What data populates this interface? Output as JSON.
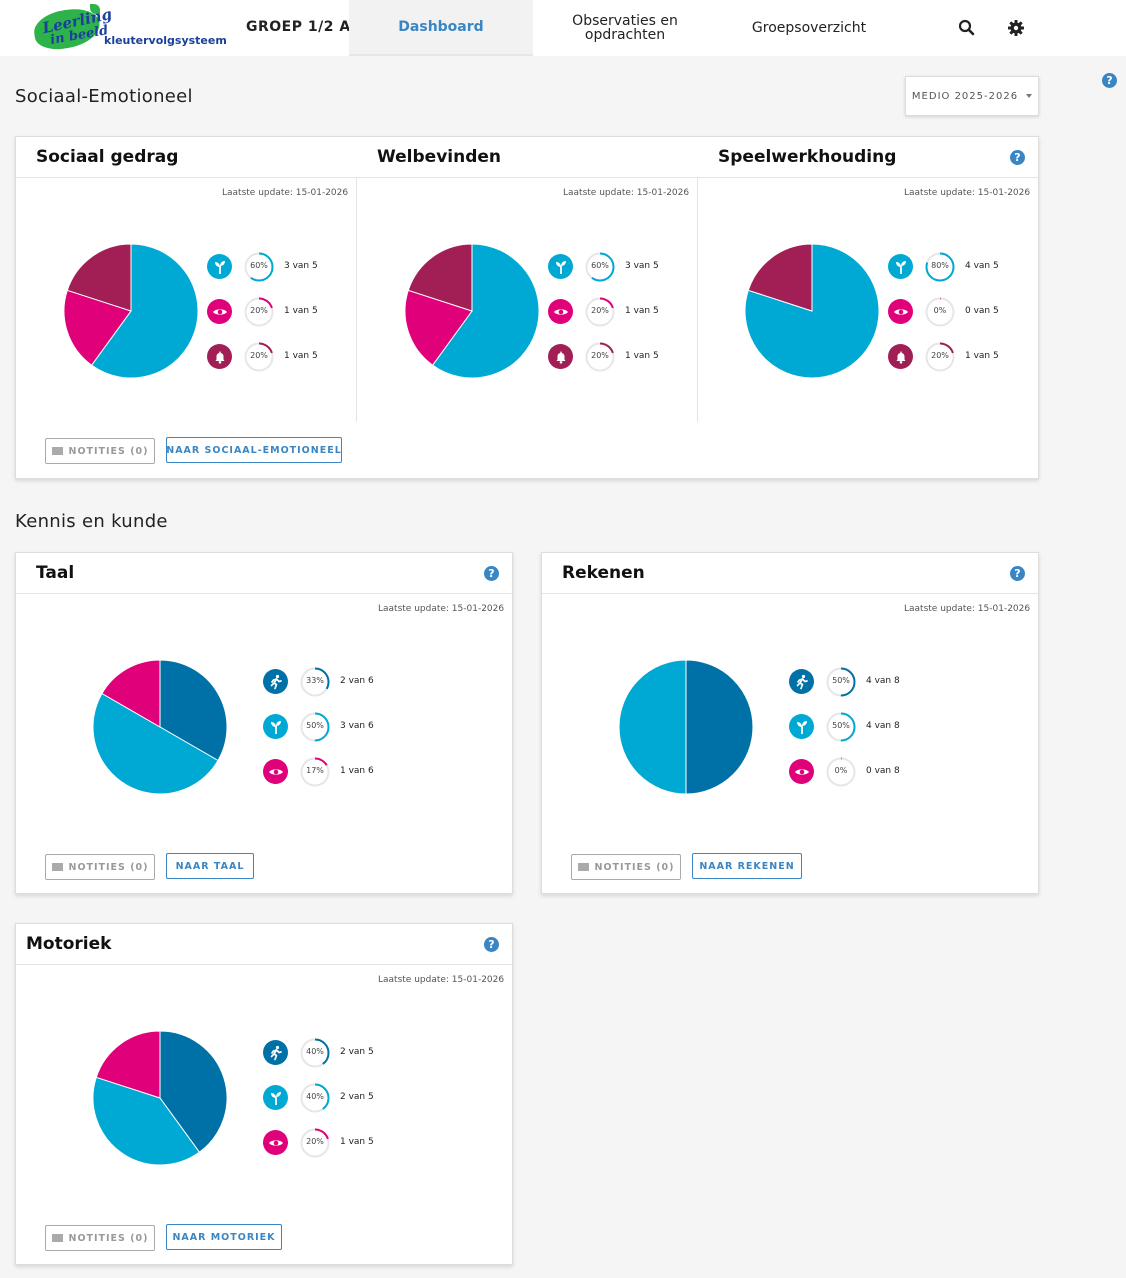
{
  "nav": {
    "logo_line1": "Leerling",
    "logo_line2": "in beeld",
    "logo_sub": "kleutervolgsysteem",
    "groep": "GROEP 1/2 A",
    "tabs": [
      {
        "label": "Dashboard",
        "active": true
      },
      {
        "label": "Observaties en opdrachten"
      },
      {
        "label": "Groepsoverzicht"
      }
    ],
    "icons": [
      "search-icon",
      "gear-icon"
    ]
  },
  "help_symbol": "?",
  "sections": {
    "sociaal": "Sociaal-Emotioneel",
    "kennis": "Kennis en kunde"
  },
  "period": {
    "selected": "MEDIO 2025-2026"
  },
  "update_label": "Laatste update: 15-01-2026",
  "buttons": {
    "notities": "NOTITIES (0)",
    "naar_sociaal": "NAAR SOCIAAL-EMOTIONEEL",
    "naar_taal": "NAAR TAAL",
    "naar_rekenen": "NAAR REKENEN",
    "naar_motoriek": "NAAR MOTORIEK"
  },
  "colors": {
    "cyan": "#00a8d4",
    "magenta": "#e0007a",
    "maroon": "#a11f55",
    "darkblue": "#0071a6",
    "accent": "#3a86c4"
  },
  "chart_data": [
    {
      "type": "pie",
      "title": "Sociaal gedrag",
      "categories": [
        "plant",
        "eye",
        "bell"
      ],
      "values": [
        3,
        1,
        1
      ],
      "percent_labels": [
        "60%",
        "20%",
        "20%"
      ],
      "count_labels": [
        "3 van 5",
        "1 van 5",
        "1 van 5"
      ]
    },
    {
      "type": "pie",
      "title": "Welbevinden",
      "categories": [
        "plant",
        "eye",
        "bell"
      ],
      "values": [
        3,
        1,
        1
      ],
      "percent_labels": [
        "60%",
        "20%",
        "20%"
      ],
      "count_labels": [
        "3 van 5",
        "1 van 5",
        "1 van 5"
      ]
    },
    {
      "type": "pie",
      "title": "Speelwerkhouding",
      "categories": [
        "plant",
        "eye",
        "bell"
      ],
      "values": [
        4,
        0,
        1
      ],
      "percent_labels": [
        "80%",
        "0%",
        "20%"
      ],
      "count_labels": [
        "4 van 5",
        "0 van 5",
        "1 van 5"
      ]
    },
    {
      "type": "pie",
      "title": "Taal",
      "categories": [
        "running",
        "plant",
        "eye"
      ],
      "values": [
        2,
        3,
        1
      ],
      "percent_labels": [
        "33%",
        "50%",
        "17%"
      ],
      "count_labels": [
        "2 van 6",
        "3 van 6",
        "1 van 6"
      ]
    },
    {
      "type": "pie",
      "title": "Rekenen",
      "categories": [
        "running",
        "plant",
        "eye"
      ],
      "values": [
        4,
        4,
        0
      ],
      "percent_labels": [
        "50%",
        "50%",
        "0%"
      ],
      "count_labels": [
        "4 van 8",
        "4 van 8",
        "0 van 8"
      ]
    },
    {
      "type": "pie",
      "title": "Motoriek",
      "categories": [
        "running",
        "plant",
        "eye"
      ],
      "values": [
        2,
        2,
        1
      ],
      "percent_labels": [
        "40%",
        "40%",
        "20%"
      ],
      "count_labels": [
        "2 van 5",
        "2 van 5",
        "1 van 5"
      ]
    }
  ]
}
